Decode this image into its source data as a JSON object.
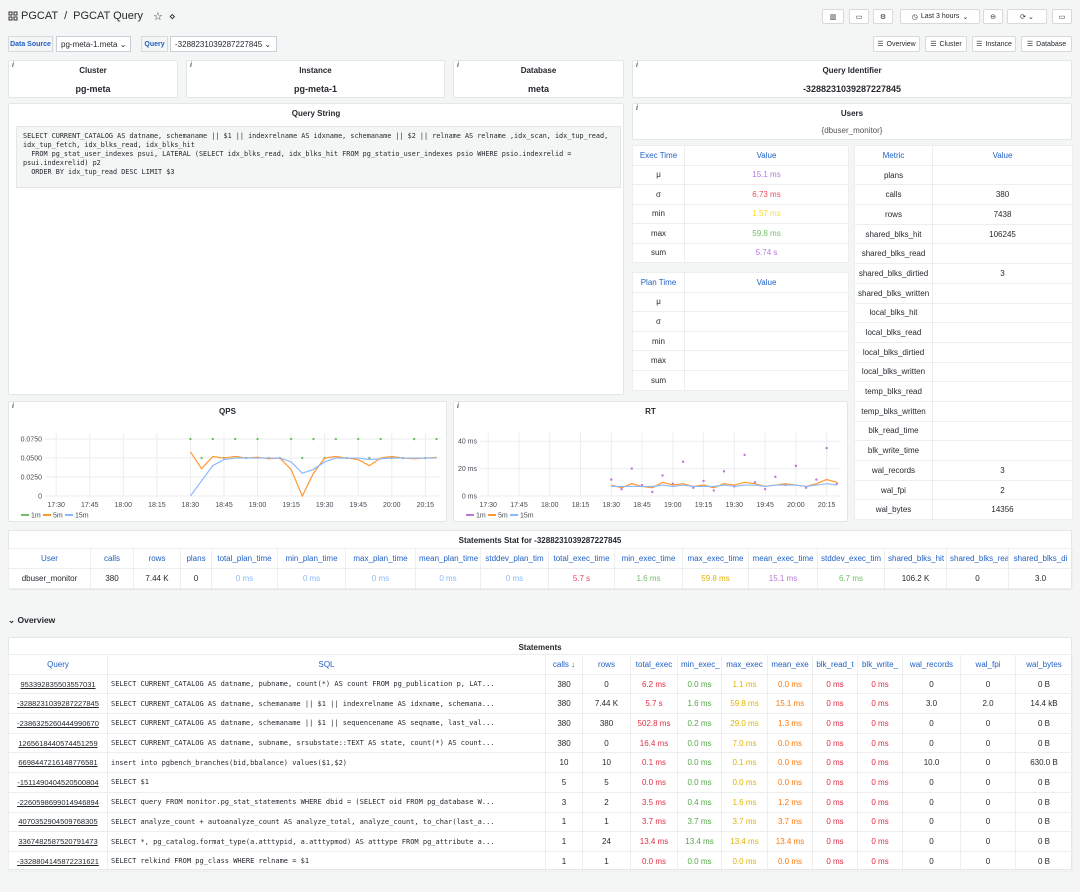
{
  "header": {
    "breadcrumb": [
      "PGCAT",
      "PGCAT Query"
    ],
    "time_range": "Last 3 hours",
    "nav_links": [
      "Overview",
      "Cluster",
      "Instance",
      "Database"
    ]
  },
  "variables": [
    {
      "label": "Data Source",
      "value": "pg-meta-1.meta"
    },
    {
      "label": "Query",
      "value": "-3288231039287227845"
    }
  ],
  "stats": [
    {
      "title": "Cluster",
      "value": "pg-meta"
    },
    {
      "title": "Instance",
      "value": "pg-meta-1"
    },
    {
      "title": "Database",
      "value": "meta"
    },
    {
      "title": "Query Identifier",
      "value": "-3288231039287227845"
    }
  ],
  "query_string": {
    "title": "Query String",
    "sql": "SELECT CURRENT_CATALOG AS datname, schemaname || $1 || indexrelname AS idxname, schemaname || $2 || relname AS relname ,idx_scan, idx_tup_read, idx_tup_fetch, idx_blks_read, idx_blks_hit\n  FROM pg_stat_user_indexes psui, LATERAL (SELECT idx_blks_read, idx_blks_hit FROM pg_statio_user_indexes psio WHERE psio.indexrelid = psui.indexrelid) p2\n  ORDER BY idx_tup_read DESC LIMIT $3"
  },
  "users": {
    "title": "Users",
    "value": "{dbuser_monitor}"
  },
  "exec_time": {
    "columns": [
      "Exec Time",
      "Value"
    ],
    "rows": [
      [
        "μ",
        "15.1 ms"
      ],
      [
        "σ",
        "6.73 ms"
      ],
      [
        "min",
        "1.57 ms"
      ],
      [
        "max",
        "59.8 ms"
      ],
      [
        "sum",
        "5.74 s"
      ]
    ]
  },
  "plan_time": {
    "columns": [
      "Plan Time",
      "Value"
    ],
    "rows": [
      [
        "μ"
      ],
      [
        "σ"
      ],
      [
        "min"
      ],
      [
        "max"
      ],
      [
        "sum"
      ]
    ]
  },
  "metrics": {
    "columns": [
      "Metric",
      "Value"
    ],
    "rows": [
      [
        "plans"
      ],
      [
        "calls",
        380
      ],
      [
        "rows",
        7438
      ],
      [
        "shared_blks_hit",
        106245
      ],
      [
        "shared_blks_read"
      ],
      [
        "shared_blks_dirtied",
        3
      ],
      [
        "shared_blks_written"
      ],
      [
        "local_blks_hit"
      ],
      [
        "local_blks_read"
      ],
      [
        "local_blks_dirtied"
      ],
      [
        "local_blks_written"
      ],
      [
        "temp_blks_read"
      ],
      [
        "temp_blks_written"
      ],
      [
        "blk_read_time"
      ],
      [
        "blk_write_time"
      ],
      [
        "wal_records",
        3
      ],
      [
        "wal_fpi",
        2
      ],
      [
        "wal_bytes",
        14356
      ]
    ]
  },
  "charts": [
    {
      "type": "line",
      "title": "QPS",
      "x": [
        "18:30",
        "18:35",
        "18:40",
        "18:45",
        "18:50",
        "18:55",
        "19:00",
        "19:05",
        "19:10",
        "19:15",
        "19:20",
        "19:25",
        "19:30",
        "19:35",
        "19:40",
        "19:45",
        "19:50",
        "19:55",
        "20:00",
        "20:05",
        "20:10",
        "20:15",
        "20:20"
      ],
      "series": [
        {
          "name": "1m",
          "color": "#73bf69",
          "values": [
            0.075,
            0.05,
            0.075,
            0.05,
            0.075,
            0.05,
            0.075,
            0.05,
            0.05,
            0.075,
            0.05,
            0.075,
            0.05,
            0.075,
            0.05,
            0.075,
            0.05,
            0.075,
            0.05,
            0.05,
            0.075,
            0.05,
            0.075
          ]
        },
        {
          "name": "5m",
          "color": "#ff9830",
          "values": [
            0.058,
            0.036,
            0.052,
            0.05,
            0.052,
            0.05,
            0.051,
            0.049,
            0.05,
            0.035,
            0.0,
            0.03,
            0.05,
            0.052,
            0.05,
            0.048,
            0.04,
            0.05,
            0.052,
            0.05,
            0.049,
            0.05,
            0.051
          ]
        },
        {
          "name": "15m",
          "color": "#8ab8ff",
          "values": [
            0.0,
            0.02,
            0.04,
            0.048,
            0.05,
            0.05,
            0.05,
            0.05,
            0.05,
            0.045,
            0.03,
            0.035,
            0.045,
            0.05,
            0.05,
            0.05,
            0.048,
            0.049,
            0.05,
            0.05,
            0.05,
            0.05,
            0.05
          ]
        }
      ],
      "xlim": [
        "17:25",
        "20:22"
      ],
      "xticks": [
        "17:30",
        "17:45",
        "18:00",
        "18:15",
        "18:30",
        "18:45",
        "19:00",
        "19:15",
        "19:30",
        "19:45",
        "20:00",
        "20:15"
      ],
      "ylim": [
        0,
        0.083
      ],
      "yticks": [
        0,
        {
          "value": 0.025,
          "label": "0.0250"
        },
        {
          "value": 0.05,
          "label": "0.0500"
        },
        {
          "value": 0.075,
          "label": "0.0750"
        }
      ],
      "grid": true
    },
    {
      "type": "line",
      "title": "RT",
      "x": [
        "18:30",
        "18:35",
        "18:40",
        "18:45",
        "18:50",
        "18:55",
        "19:00",
        "19:05",
        "19:10",
        "19:15",
        "19:20",
        "19:25",
        "19:30",
        "19:35",
        "19:40",
        "19:45",
        "19:50",
        "19:55",
        "20:00",
        "20:05",
        "20:10",
        "20:15",
        "20:20"
      ],
      "series": [
        {
          "name": "1m",
          "color": "#b877d9",
          "values": [
            12,
            5,
            20,
            8,
            3,
            15,
            9,
            25,
            6,
            11,
            4,
            18,
            7,
            30,
            10,
            5,
            14,
            8,
            22,
            6,
            12,
            35,
            9
          ]
        },
        {
          "name": "5m",
          "color": "#ff9830",
          "values": [
            8,
            6,
            9,
            7,
            6,
            10,
            8,
            9,
            7,
            8,
            6,
            9,
            8,
            10,
            9,
            7,
            8,
            9,
            8,
            7,
            9,
            12,
            10
          ]
        },
        {
          "name": "15m",
          "color": "#8ab8ff",
          "values": [
            7,
            7,
            7,
            7,
            7,
            8,
            7,
            8,
            7,
            7,
            7,
            8,
            7,
            8,
            8,
            7,
            8,
            8,
            8,
            7,
            8,
            9,
            8
          ]
        }
      ],
      "xlim": [
        "17:26",
        "20:22"
      ],
      "xticks": [
        "17:30",
        "17:45",
        "18:00",
        "18:15",
        "18:30",
        "18:45",
        "19:00",
        "19:15",
        "19:30",
        "19:45",
        "20:00",
        "20:15"
      ],
      "ylim": [
        0,
        46
      ],
      "yticks": [
        {
          "value": 0,
          "label": "0 ms"
        },
        {
          "value": 20,
          "label": "20 ms"
        },
        {
          "value": 40,
          "label": "40 ms"
        }
      ],
      "grid": true
    }
  ],
  "statements_stat": {
    "title": "Statements Stat for -3288231039287227845",
    "columns": [
      "User",
      "calls",
      "rows",
      "plans",
      "total_plan_time",
      "min_plan_time",
      "max_plan_time",
      "mean_plan_time",
      "stddev_plan_tim",
      "total_exec_time",
      "min_exec_time",
      "max_exec_time",
      "mean_exec_time",
      "stddev_exec_tim",
      "shared_blks_hit",
      "shared_blks_read",
      "shared_blks_di"
    ],
    "rows": [
      [
        "dbuser_monitor",
        380,
        "7.44 K",
        0,
        "0 ms",
        "0 ms",
        "0 ms",
        "0 ms",
        "0 ms",
        "5.7 s",
        "1.6 ms",
        "59.8 ms",
        "15.1 ms",
        "6.7 ms",
        "106.2 K",
        0,
        "3.0"
      ]
    ]
  },
  "overview_row": "Overview",
  "statements": {
    "title": "Statements",
    "columns": [
      "Query",
      "SQL",
      "calls ↓",
      "rows",
      "total_exec",
      "min_exec_",
      "max_exec",
      "mean_exe",
      "blk_read_t",
      "blk_write_",
      "wal_records",
      "wal_fpi",
      "wal_bytes"
    ],
    "rows": [
      [
        "953392835503557031",
        "SELECT CURRENT_CATALOG AS datname, pubname, count(*) AS count FROM pg_publication p, LAT...",
        380,
        0,
        "6.2 ms",
        "0.0 ms",
        "1.1 ms",
        "0.0 ms",
        "0 ms",
        "0 ms",
        0,
        0,
        "0 B"
      ],
      [
        "-3288231039287227845",
        "SELECT CURRENT_CATALOG AS datname, schemaname || $1 || indexrelname AS idxname, schemana...",
        380,
        "7.44 K",
        "5.7 s",
        "1.6 ms",
        "59.8 ms",
        "15.1 ms",
        "0 ms",
        "0 ms",
        "3.0",
        "2.0",
        "14.4 kB"
      ],
      [
        "-2386325260444990670",
        "SELECT CURRENT_CATALOG AS datname, schemaname || $1 || sequencename AS seqname, last_val...",
        380,
        380,
        "502.8 ms",
        "0.2 ms",
        "29.0 ms",
        "1.3 ms",
        "0 ms",
        "0 ms",
        0,
        0,
        "0 B"
      ],
      [
        "1265618440574451259",
        "SELECT CURRENT_CATALOG AS datname, subname, srsubstate::TEXT AS state, count(*) AS count...",
        380,
        0,
        "16.4 ms",
        "0.0 ms",
        "7.0 ms",
        "0.0 ms",
        "0 ms",
        "0 ms",
        0,
        0,
        "0 B"
      ],
      [
        "6698447216148776581",
        "insert into pgbench_branches(bid,bbalance) values($1,$2)",
        10,
        10,
        "0.1 ms",
        "0.0 ms",
        "0.1 ms",
        "0.0 ms",
        "0 ms",
        "0 ms",
        "10.0",
        0,
        "630.0 B"
      ],
      [
        "-1511490404520500804",
        "SELECT $1",
        5,
        5,
        "0.0 ms",
        "0.0 ms",
        "0.0 ms",
        "0.0 ms",
        "0 ms",
        "0 ms",
        0,
        0,
        "0 B"
      ],
      [
        "-2260598699014946894",
        "SELECT query FROM monitor.pg_stat_statements WHERE dbid = (SELECT oid FROM pg_database W...",
        3,
        2,
        "3.5 ms",
        "0.4 ms",
        "1.6 ms",
        "1.2 ms",
        "0 ms",
        "0 ms",
        0,
        0,
        "0 B"
      ],
      [
        "4070352904509768305",
        "SELECT analyze_count + autoanalyze_count AS analyze_total, analyze_count, to_char(last_a...",
        1,
        1,
        "3.7 ms",
        "3.7 ms",
        "3.7 ms",
        "3.7 ms",
        "0 ms",
        "0 ms",
        0,
        0,
        "0 B"
      ],
      [
        "3367482587520791473",
        "SELECT *, pg_catalog.format_type(a.atttypid, a.atttypmod) AS atttype FROM pg_attribute a...",
        1,
        24,
        "13.4 ms",
        "13.4 ms",
        "13.4 ms",
        "13.4 ms",
        "0 ms",
        "0 ms",
        0,
        0,
        "0 B"
      ],
      [
        "-3328804145872231621",
        "SELECT relkind FROM pg_class WHERE relname = $1",
        1,
        1,
        "0.0 ms",
        "0.0 ms",
        "0.0 ms",
        "0.0 ms",
        "0 ms",
        "0 ms",
        0,
        0,
        "0 B"
      ]
    ]
  }
}
